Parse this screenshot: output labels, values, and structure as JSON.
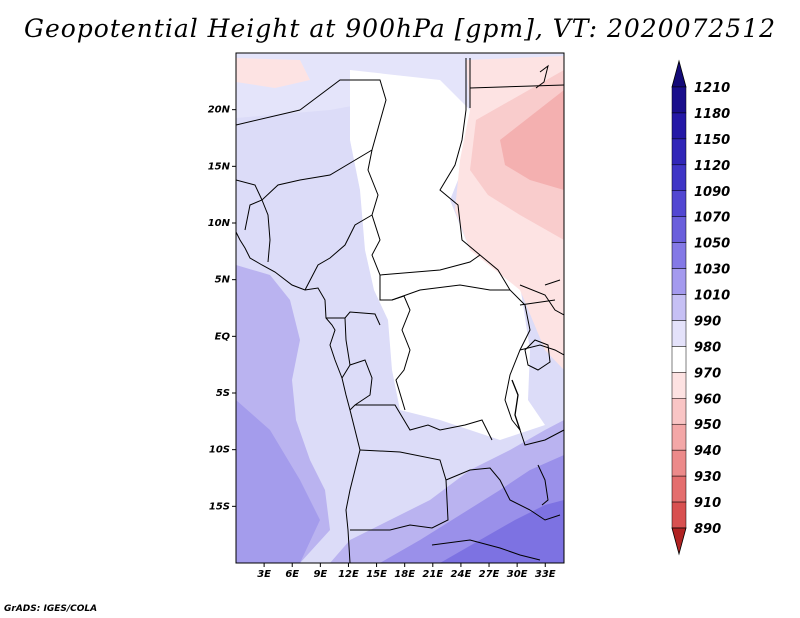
{
  "title": "Geopotential Height at 900hPa [gpm], VT: 2020072512",
  "credit": "GrADS: IGES/COLA",
  "map": {
    "lon_range": [
      0,
      35
    ],
    "lat_range": [
      -20,
      25
    ],
    "lat_ticks": [
      {
        "value": 20,
        "label": "20N"
      },
      {
        "value": 15,
        "label": "15N"
      },
      {
        "value": 10,
        "label": "10N"
      },
      {
        "value": 5,
        "label": "5N"
      },
      {
        "value": 0,
        "label": "EQ"
      },
      {
        "value": -5,
        "label": "5S"
      },
      {
        "value": -10,
        "label": "10S"
      },
      {
        "value": -15,
        "label": "15S"
      }
    ],
    "lon_ticks": [
      {
        "value": 3,
        "label": "3E"
      },
      {
        "value": 6,
        "label": "6E"
      },
      {
        "value": 9,
        "label": "9E"
      },
      {
        "value": 12,
        "label": "12E"
      },
      {
        "value": 15,
        "label": "15E"
      },
      {
        "value": 18,
        "label": "18E"
      },
      {
        "value": 21,
        "label": "21E"
      },
      {
        "value": 24,
        "label": "24E"
      },
      {
        "value": 27,
        "label": "27E"
      },
      {
        "value": 30,
        "label": "30E"
      },
      {
        "value": 33,
        "label": "33E"
      }
    ]
  },
  "colorbar": {
    "levels": [
      {
        "label": "1210",
        "color": "#1a0f8c"
      },
      {
        "label": "1180",
        "color": "#2418a6"
      },
      {
        "label": "1150",
        "color": "#3126b8"
      },
      {
        "label": "1120",
        "color": "#3f35c6"
      },
      {
        "label": "1090",
        "color": "#5247d2"
      },
      {
        "label": "1070",
        "color": "#6a5fdc"
      },
      {
        "label": "1050",
        "color": "#8479e6"
      },
      {
        "label": "1030",
        "color": "#a49aee"
      },
      {
        "label": "1010",
        "color": "#c6c0f4"
      },
      {
        "label": "990",
        "color": "#e4e2fa"
      },
      {
        "label": "980",
        "color": "#ffffff"
      },
      {
        "label": "970",
        "color": "#fde2e2"
      },
      {
        "label": "960",
        "color": "#f9c5c5"
      },
      {
        "label": "950",
        "color": "#f3a7a7"
      },
      {
        "label": "940",
        "color": "#ec8a8a"
      },
      {
        "label": "930",
        "color": "#e46e6e"
      },
      {
        "label": "910",
        "color": "#d85050"
      },
      {
        "label": "890",
        "color": "#c63535"
      }
    ],
    "top_color": "#140a78",
    "bottom_color": "#b02222"
  }
}
